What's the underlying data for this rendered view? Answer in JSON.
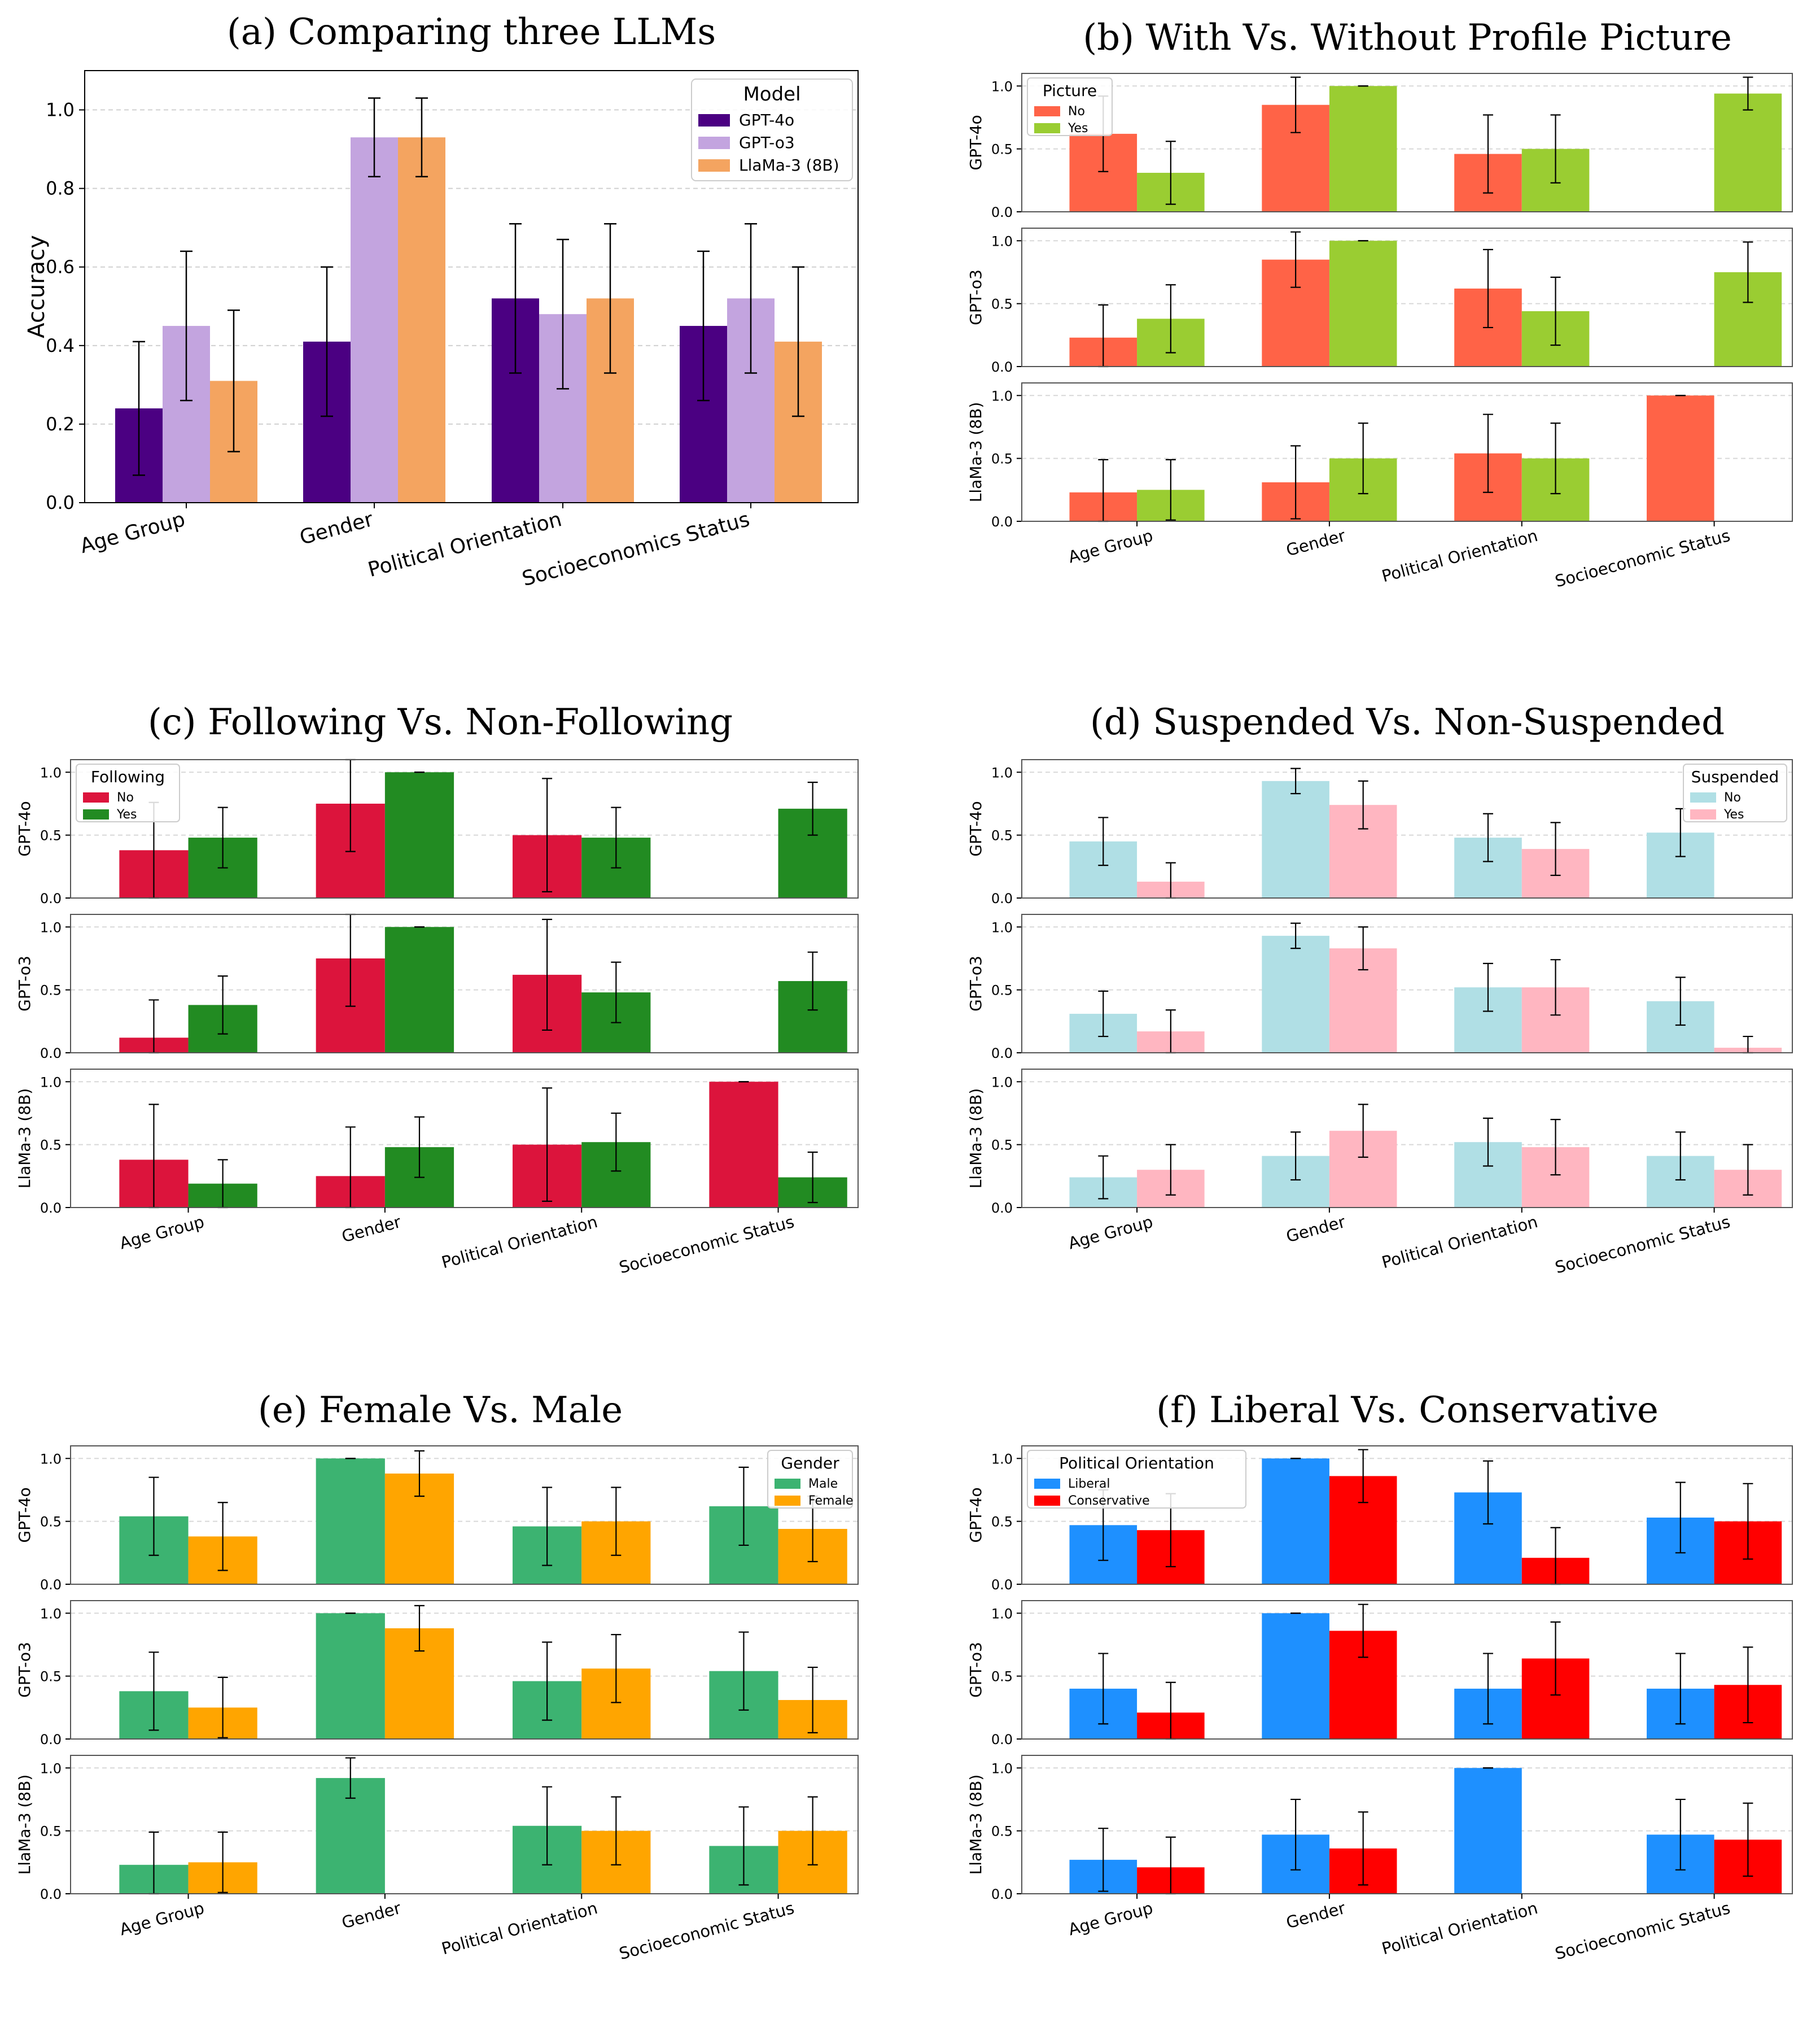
{
  "chart_data": [
    {
      "id": "a",
      "type": "bar",
      "title": "(a) Comparing three LLMs",
      "categories": [
        "Age Group",
        "Gender",
        "Political Orientation",
        "Socioeconomics Status"
      ],
      "ylabel": "Accuracy",
      "ylim": [
        0,
        1.1
      ],
      "yticks": [
        "0.0",
        "0.2",
        "0.4",
        "0.6",
        "0.8",
        "1.0"
      ],
      "grid": true,
      "legend": {
        "title": "Model",
        "position": "top-right"
      },
      "series": [
        {
          "name": "GPT-4o",
          "color": "#4b0082",
          "values": [
            0.24,
            0.41,
            0.52,
            0.45
          ],
          "err": [
            0.17,
            0.19,
            0.19,
            0.19
          ]
        },
        {
          "name": "GPT-o3",
          "color": "#c3a4df",
          "values": [
            0.45,
            0.93,
            0.48,
            0.52
          ],
          "err": [
            0.19,
            0.1,
            0.19,
            0.19
          ]
        },
        {
          "name": "LlaMa-3 (8B)",
          "color": "#f4a460",
          "values": [
            0.31,
            0.93,
            0.52,
            0.41
          ],
          "err": [
            0.18,
            0.1,
            0.19,
            0.19
          ]
        }
      ]
    },
    {
      "id": "b",
      "type": "bar",
      "title": "(b) With Vs. Without Profile Picture",
      "categories": [
        "Age Group",
        "Gender",
        "Political Orientation",
        "Socioeconomic Status"
      ],
      "legend": {
        "title": "Picture",
        "position": "top-left"
      },
      "series_names": [
        "No",
        "Yes"
      ],
      "colors": [
        "#ff6347",
        "#9acd32"
      ],
      "ylim": [
        0,
        1.1
      ],
      "yticks": [
        "0.0",
        "0.5",
        "1.0"
      ],
      "rows": [
        {
          "ylabel": "GPT-4o",
          "values": [
            [
              0.62,
              0.31
            ],
            [
              0.85,
              1.0
            ],
            [
              0.46,
              0.5
            ],
            [
              0.0,
              0.94
            ]
          ],
          "err": [
            [
              0.3,
              0.25
            ],
            [
              0.22,
              0.0
            ],
            [
              0.31,
              0.27
            ],
            [
              0.0,
              0.13
            ]
          ]
        },
        {
          "ylabel": "GPT-o3",
          "values": [
            [
              0.23,
              0.38
            ],
            [
              0.85,
              1.0
            ],
            [
              0.62,
              0.44
            ],
            [
              0.0,
              0.75
            ]
          ],
          "err": [
            [
              0.26,
              0.27
            ],
            [
              0.22,
              0.0
            ],
            [
              0.31,
              0.27
            ],
            [
              0.0,
              0.24
            ]
          ]
        },
        {
          "ylabel": "LlaMa-3 (8B)",
          "values": [
            [
              0.23,
              0.25
            ],
            [
              0.31,
              0.5
            ],
            [
              0.54,
              0.5
            ],
            [
              1.0,
              0.0
            ]
          ],
          "err": [
            [
              0.26,
              0.24
            ],
            [
              0.29,
              0.28
            ],
            [
              0.31,
              0.28
            ],
            [
              0.0,
              0.0
            ]
          ]
        }
      ]
    },
    {
      "id": "c",
      "type": "bar",
      "title": "(c) Following Vs. Non-Following",
      "categories": [
        "Age Group",
        "Gender",
        "Political Orientation",
        "Socioeconomic Status"
      ],
      "legend": {
        "title": "Following",
        "position": "top-left"
      },
      "series_names": [
        "No",
        "Yes"
      ],
      "colors": [
        "#dc143c",
        "#228b22"
      ],
      "ylim": [
        0,
        1.1
      ],
      "yticks": [
        "0.0",
        "0.5",
        "1.0"
      ],
      "rows": [
        {
          "ylabel": "GPT-4o",
          "values": [
            [
              0.38,
              0.48
            ],
            [
              0.75,
              1.0
            ],
            [
              0.5,
              0.48
            ],
            [
              0.0,
              0.71
            ]
          ],
          "err": [
            [
              0.38,
              0.24
            ],
            [
              0.38,
              0.0
            ],
            [
              0.45,
              0.24
            ],
            [
              0.0,
              0.21
            ]
          ]
        },
        {
          "ylabel": "GPT-o3",
          "values": [
            [
              0.12,
              0.38
            ],
            [
              0.75,
              1.0
            ],
            [
              0.62,
              0.48
            ],
            [
              0.0,
              0.57
            ]
          ],
          "err": [
            [
              0.3,
              0.23
            ],
            [
              0.38,
              0.0
            ],
            [
              0.44,
              0.24
            ],
            [
              0.0,
              0.23
            ]
          ]
        },
        {
          "ylabel": "LlaMa-3 (8B)",
          "values": [
            [
              0.38,
              0.19
            ],
            [
              0.25,
              0.48
            ],
            [
              0.5,
              0.52
            ],
            [
              1.0,
              0.24
            ]
          ],
          "err": [
            [
              0.44,
              0.19
            ],
            [
              0.39,
              0.24
            ],
            [
              0.45,
              0.23
            ],
            [
              0.0,
              0.2
            ]
          ]
        }
      ]
    },
    {
      "id": "d",
      "type": "bar",
      "title": "(d) Suspended Vs. Non-Suspended",
      "categories": [
        "Age Group",
        "Gender",
        "Political Orientation",
        "Socioeconomic Status"
      ],
      "legend": {
        "title": "Suspended",
        "position": "top-right"
      },
      "series_names": [
        "No",
        "Yes"
      ],
      "colors": [
        "#b0dfe5",
        "#ffb6c1"
      ],
      "ylim": [
        0,
        1.1
      ],
      "yticks": [
        "0.0",
        "0.5",
        "1.0"
      ],
      "rows": [
        {
          "ylabel": "GPT-4o",
          "values": [
            [
              0.45,
              0.13
            ],
            [
              0.93,
              0.74
            ],
            [
              0.48,
              0.39
            ],
            [
              0.52,
              0.0
            ]
          ],
          "err": [
            [
              0.19,
              0.15
            ],
            [
              0.1,
              0.19
            ],
            [
              0.19,
              0.21
            ],
            [
              0.19,
              0.0
            ]
          ]
        },
        {
          "ylabel": "GPT-o3",
          "values": [
            [
              0.31,
              0.17
            ],
            [
              0.93,
              0.83
            ],
            [
              0.52,
              0.52
            ],
            [
              0.41,
              0.04
            ]
          ],
          "err": [
            [
              0.18,
              0.17
            ],
            [
              0.1,
              0.17
            ],
            [
              0.19,
              0.22
            ],
            [
              0.19,
              0.09
            ]
          ]
        },
        {
          "ylabel": "LlaMa-3 (8B)",
          "values": [
            [
              0.24,
              0.3
            ],
            [
              0.41,
              0.61
            ],
            [
              0.52,
              0.48
            ],
            [
              0.41,
              0.3
            ]
          ],
          "err": [
            [
              0.17,
              0.2
            ],
            [
              0.19,
              0.21
            ],
            [
              0.19,
              0.22
            ],
            [
              0.19,
              0.2
            ]
          ]
        }
      ]
    },
    {
      "id": "e",
      "type": "bar",
      "title": "(e) Female Vs. Male",
      "categories": [
        "Age Group",
        "Gender",
        "Political Orientation",
        "Socioeconomic Status"
      ],
      "legend": {
        "title": "Gender",
        "position": "top-right"
      },
      "series_names": [
        "Male",
        "Female"
      ],
      "colors": [
        "#3cb371",
        "#ffa500"
      ],
      "ylim": [
        0,
        1.1
      ],
      "yticks": [
        "0.0",
        "0.5",
        "1.0"
      ],
      "rows": [
        {
          "ylabel": "GPT-4o",
          "values": [
            [
              0.54,
              0.38
            ],
            [
              1.0,
              0.88
            ],
            [
              0.46,
              0.5
            ],
            [
              0.62,
              0.44
            ]
          ],
          "err": [
            [
              0.31,
              0.27
            ],
            [
              0.0,
              0.18
            ],
            [
              0.31,
              0.27
            ],
            [
              0.31,
              0.26
            ]
          ]
        },
        {
          "ylabel": "GPT-o3",
          "values": [
            [
              0.38,
              0.25
            ],
            [
              1.0,
              0.88
            ],
            [
              0.46,
              0.56
            ],
            [
              0.54,
              0.31
            ]
          ],
          "err": [
            [
              0.31,
              0.24
            ],
            [
              0.0,
              0.18
            ],
            [
              0.31,
              0.27
            ],
            [
              0.31,
              0.26
            ]
          ]
        },
        {
          "ylabel": "LlaMa-3 (8B)",
          "values": [
            [
              0.23,
              0.25
            ],
            [
              0.92,
              0.0
            ],
            [
              0.54,
              0.5
            ],
            [
              0.38,
              0.5
            ]
          ],
          "err": [
            [
              0.26,
              0.24
            ],
            [
              0.16,
              0.0
            ],
            [
              0.31,
              0.27
            ],
            [
              0.31,
              0.27
            ]
          ]
        }
      ]
    },
    {
      "id": "f",
      "type": "bar",
      "title": "(f) Liberal Vs. Conservative",
      "categories": [
        "Age Group",
        "Gender",
        "Political Orientation",
        "Socioeconomic Status"
      ],
      "legend": {
        "title": "Political Orientation",
        "position": "top-left"
      },
      "series_names": [
        "Liberal",
        "Conservative"
      ],
      "colors": [
        "#1e90ff",
        "#ff0000"
      ],
      "ylim": [
        0,
        1.1
      ],
      "yticks": [
        "0.0",
        "0.5",
        "1.0"
      ],
      "rows": [
        {
          "ylabel": "GPT-4o",
          "values": [
            [
              0.47,
              0.43
            ],
            [
              1.0,
              0.86
            ],
            [
              0.73,
              0.21
            ],
            [
              0.53,
              0.5
            ]
          ],
          "err": [
            [
              0.28,
              0.29
            ],
            [
              0.0,
              0.21
            ],
            [
              0.25,
              0.24
            ],
            [
              0.28,
              0.3
            ]
          ]
        },
        {
          "ylabel": "GPT-o3",
          "values": [
            [
              0.4,
              0.21
            ],
            [
              1.0,
              0.86
            ],
            [
              0.4,
              0.64
            ],
            [
              0.4,
              0.43
            ]
          ],
          "err": [
            [
              0.28,
              0.24
            ],
            [
              0.0,
              0.21
            ],
            [
              0.28,
              0.29
            ],
            [
              0.28,
              0.3
            ]
          ]
        },
        {
          "ylabel": "LlaMa-3 (8B)",
          "values": [
            [
              0.27,
              0.21
            ],
            [
              0.47,
              0.36
            ],
            [
              1.0,
              0.0
            ],
            [
              0.47,
              0.43
            ]
          ],
          "err": [
            [
              0.25,
              0.24
            ],
            [
              0.28,
              0.29
            ],
            [
              0.0,
              0.0
            ],
            [
              0.28,
              0.29
            ]
          ]
        }
      ]
    }
  ]
}
